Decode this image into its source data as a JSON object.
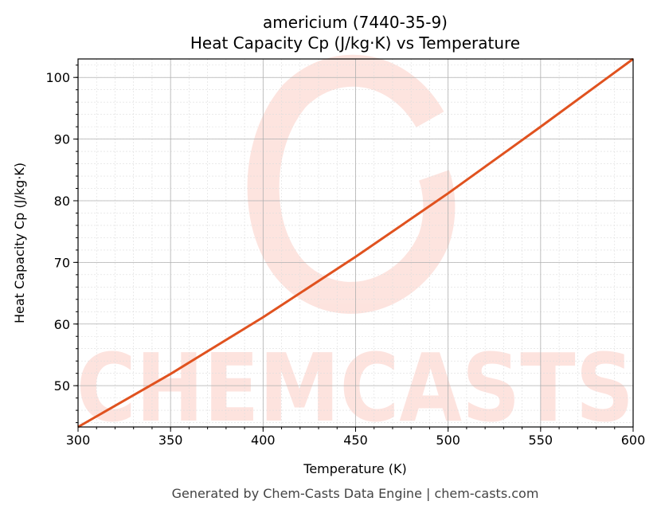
{
  "chart_data": {
    "type": "line",
    "title": "americium (7440-35-9)",
    "subtitle": "Heat Capacity Cp (J/kg·K) vs Temperature",
    "xlabel": "Temperature (K)",
    "ylabel": "Heat Capacity Cp (J/kg·K)",
    "xlim": [
      300,
      600
    ],
    "ylim": [
      43.3,
      103.0
    ],
    "xticks": [
      300,
      350,
      400,
      450,
      500,
      550,
      600
    ],
    "yticks": [
      50,
      60,
      70,
      80,
      90,
      100
    ],
    "grid": true,
    "series": [
      {
        "color": "#e0521f",
        "x": [
          300,
          350,
          400,
          450,
          500,
          550,
          600
        ],
        "y": [
          43.3,
          51.9,
          61.1,
          70.9,
          81.2,
          92.0,
          103.0
        ]
      }
    ]
  },
  "watermark": "CHEMCASTS",
  "footer": "Generated by Chem-Casts Data Engine | chem-casts.com"
}
